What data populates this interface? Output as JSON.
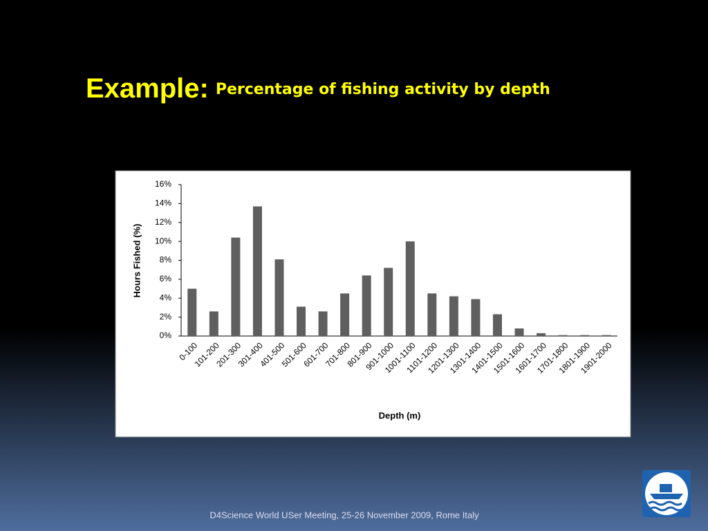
{
  "slide": {
    "title_lead": "Example:",
    "footer": "D4Science World USer Meeting, 25-26 November 2009, Rome Italy"
  },
  "chart_data": {
    "type": "bar",
    "title": "Percentage of fishing activity by depth",
    "x_label": "Depth (m)",
    "y_label": "Hours Fished (%)",
    "categories": [
      "0-100",
      "101-200",
      "201-300",
      "301-400",
      "401-500",
      "501-600",
      "601-700",
      "701-800",
      "801-900",
      "901-1000",
      "1001-1100",
      "1101-1200",
      "1201-1300",
      "1301-1400",
      "1401-1500",
      "1501-1600",
      "1601-1700",
      "1701-1800",
      "1801-1900",
      "1901-2000"
    ],
    "values": [
      5.0,
      2.6,
      10.4,
      13.7,
      8.1,
      3.1,
      2.6,
      4.5,
      6.4,
      7.2,
      10.0,
      4.5,
      4.2,
      3.9,
      2.3,
      0.8,
      0.3,
      0.1,
      0.1,
      0.1
    ],
    "color": "#5f5f5f",
    "ylim": [
      0,
      16
    ],
    "yticks": [
      {
        "value": 0,
        "label": "0%"
      },
      {
        "value": 2,
        "label": "2%"
      },
      {
        "value": 4,
        "label": "4%"
      },
      {
        "value": 6,
        "label": "6%"
      },
      {
        "value": 8,
        "label": "8%"
      },
      {
        "value": 10,
        "label": "10%"
      },
      {
        "value": 12,
        "label": "12%"
      },
      {
        "value": 14,
        "label": "14%"
      },
      {
        "value": 16,
        "label": "16%"
      }
    ],
    "grid": false
  }
}
